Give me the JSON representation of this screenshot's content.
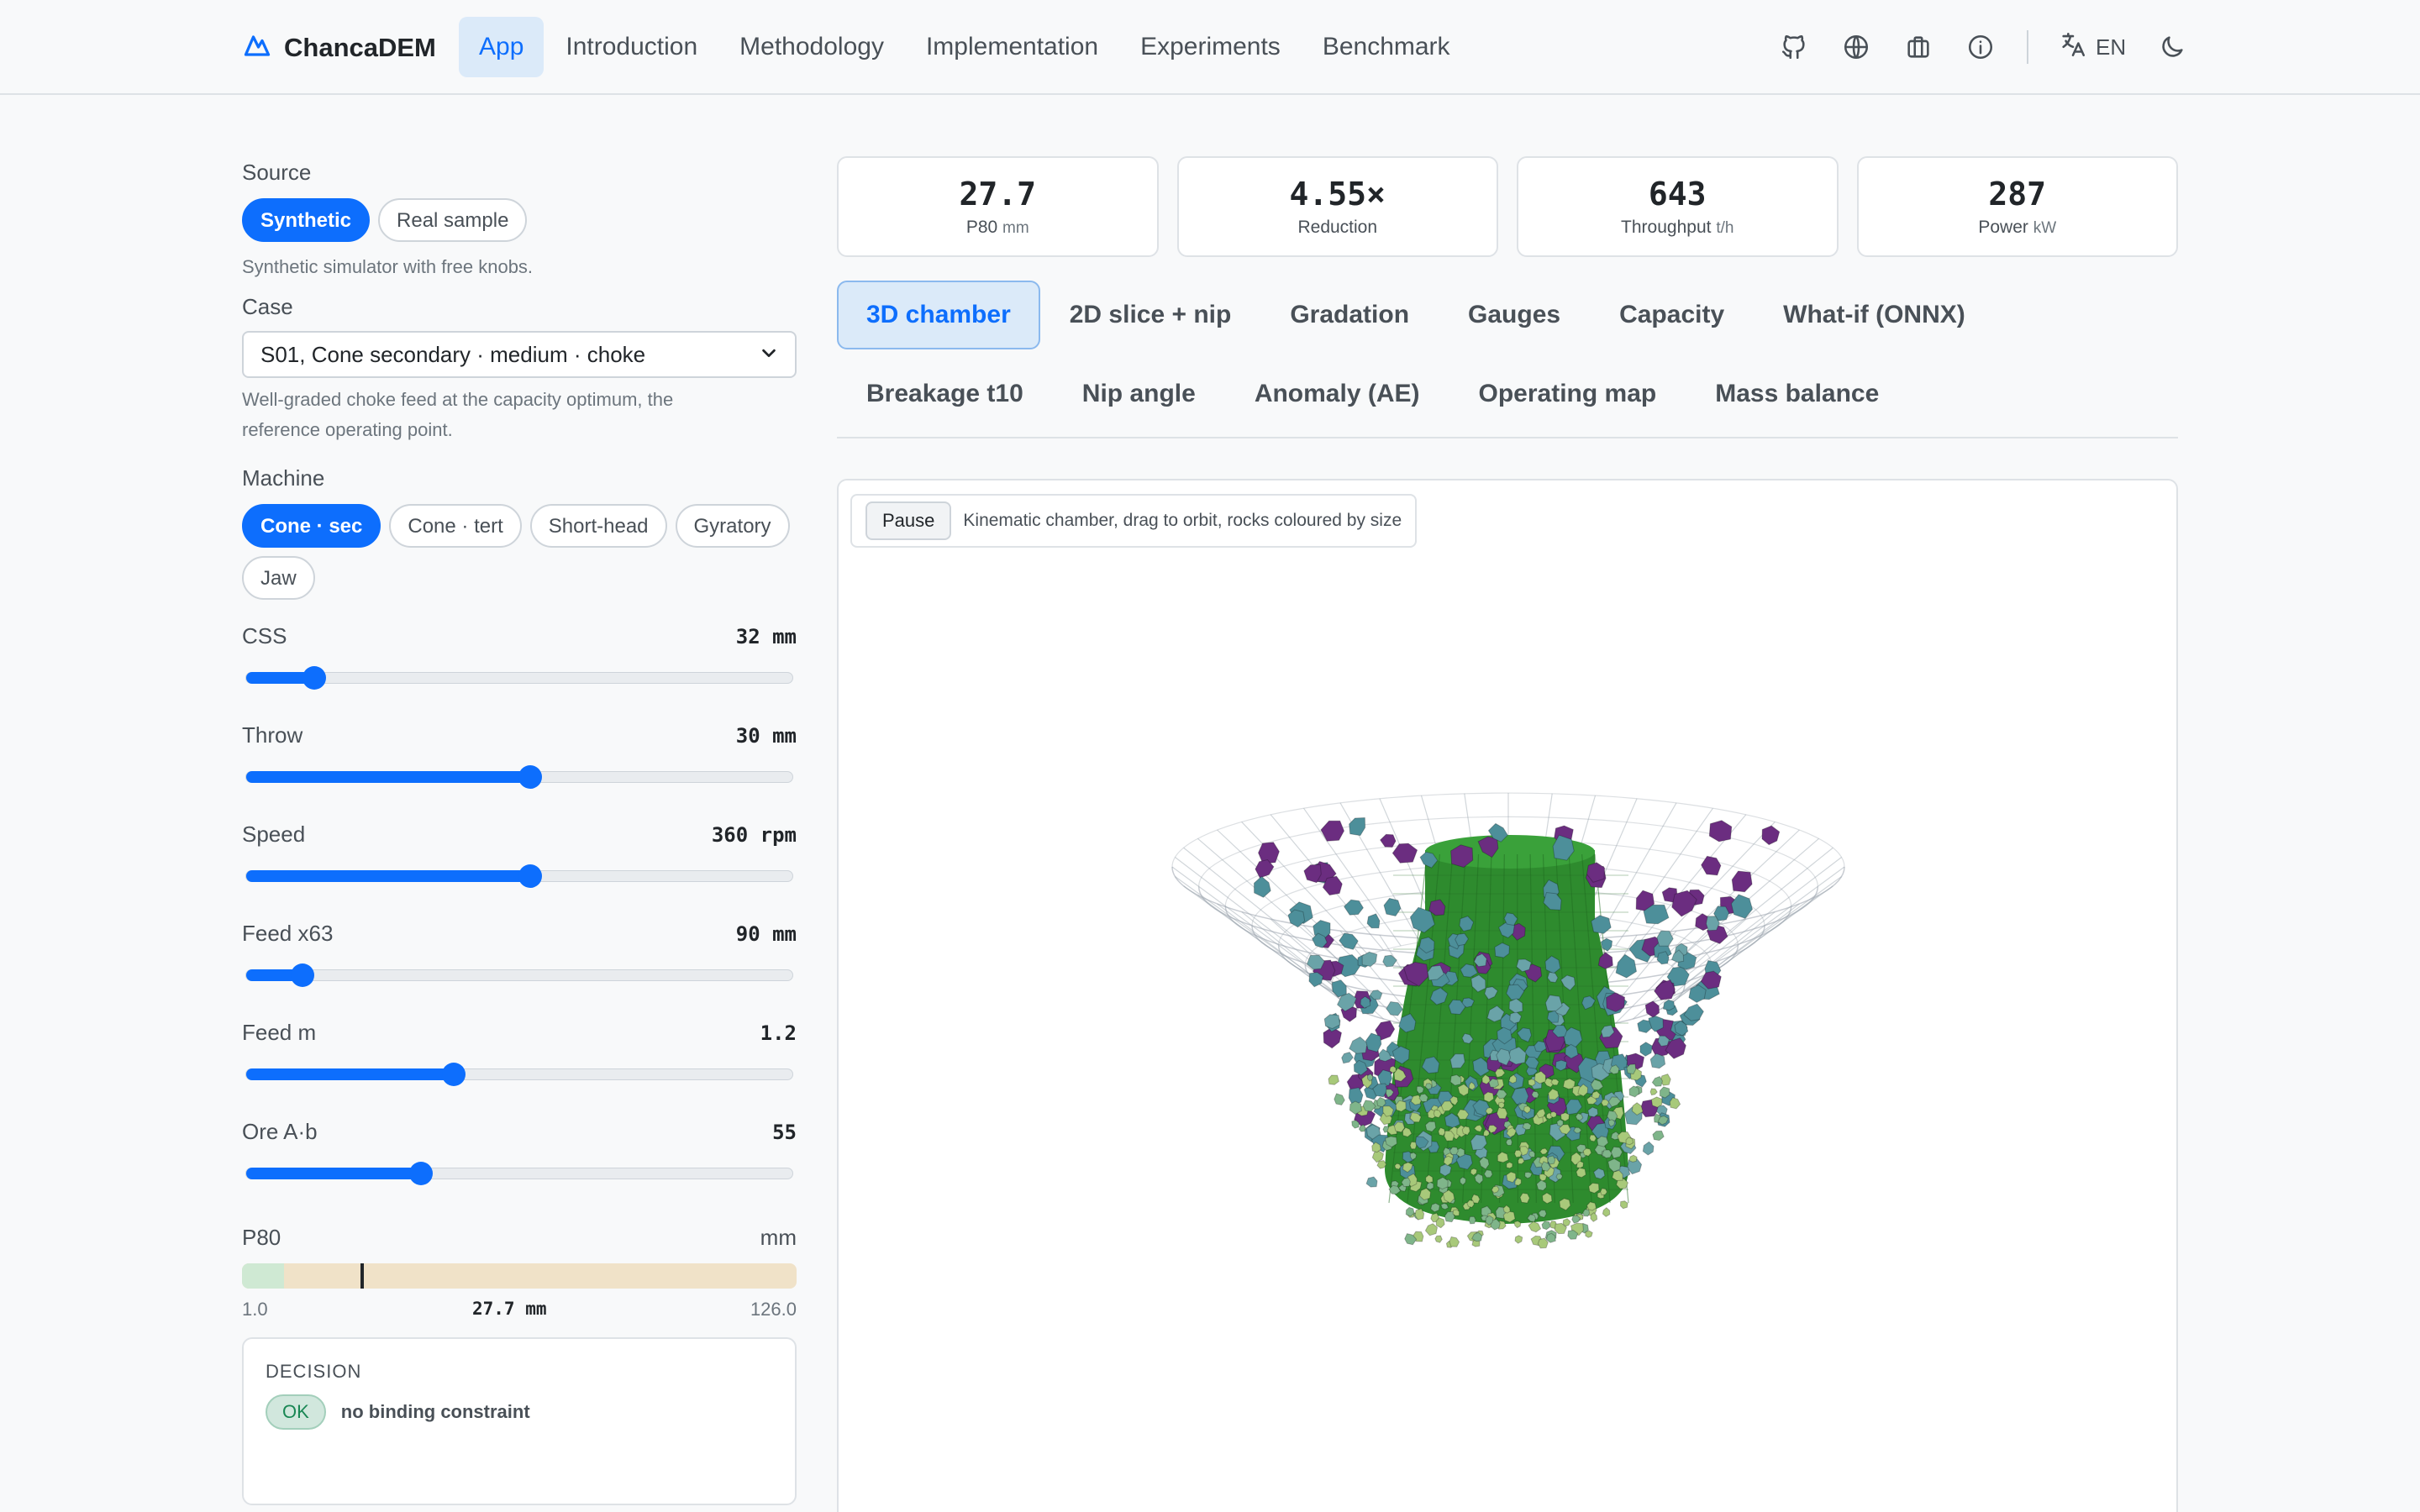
{
  "nav": {
    "brand": "ChancaDEM",
    "links": [
      "App",
      "Introduction",
      "Methodology",
      "Implementation",
      "Experiments",
      "Benchmark"
    ],
    "active_index": 0,
    "icons": [
      "github-icon",
      "globe-icon",
      "briefcase-icon",
      "info-icon"
    ],
    "lang": "EN"
  },
  "sidebar": {
    "source_label": "Source",
    "source_options": [
      "Synthetic",
      "Real sample"
    ],
    "source_hint": "Synthetic simulator with free knobs.",
    "case_label": "Case",
    "case_value": "S01, Cone secondary · medium · choke",
    "case_hint_1": "Well-graded choke feed at the capacity optimum, the",
    "case_hint_2": "reference operating point.",
    "machine_label": "Machine",
    "machine_options": [
      "Cone · sec",
      "Cone · tert",
      "Short-head",
      "Gyratory",
      "Jaw"
    ],
    "sliders": [
      {
        "label": "CSS",
        "value": "32 mm",
        "fraction": 0.125
      },
      {
        "label": "Throw",
        "value": "30 mm",
        "fraction": 0.52
      },
      {
        "label": "Speed",
        "value": "360 rpm",
        "fraction": 0.52
      },
      {
        "label": "Feed x63",
        "value": "90 mm",
        "fraction": 0.105
      },
      {
        "label": "Feed m",
        "value": "1.2",
        "fraction": 0.38
      },
      {
        "label": "Ore A·b",
        "value": "55",
        "fraction": 0.32
      }
    ],
    "p80": {
      "label": "P80",
      "unit": "mm",
      "min": "1.0",
      "max": "126.0",
      "value_text": "27.7 mm",
      "value": 27.7,
      "range_min": 1.0,
      "range_max": 126.0,
      "green_end": 10.5
    },
    "decision": {
      "title": "DECISION",
      "badge": "OK",
      "text": "no binding constraint"
    }
  },
  "metrics": [
    {
      "value": "27.7",
      "label": "P80",
      "unit": "mm"
    },
    {
      "value": "4.55×",
      "label": "Reduction",
      "unit": ""
    },
    {
      "value": "643",
      "label": "Throughput",
      "unit": "t/h"
    },
    {
      "value": "287",
      "label": "Power",
      "unit": "kW"
    }
  ],
  "tabs": [
    "3D chamber",
    "2D slice + nip",
    "Gradation",
    "Gauges",
    "Capacity",
    "What-if (ONNX)",
    "Breakage t10",
    "Nip angle",
    "Anomaly (AE)",
    "Operating map",
    "Mass balance"
  ],
  "active_tab": 0,
  "viewer": {
    "pause_label": "Pause",
    "caption": "Kinematic chamber, drag to orbit, rocks coloured by size"
  },
  "colors": {
    "accent": "#0d6efd",
    "mantle": "#2e8b2e",
    "rock_large": "#6b2d80",
    "rock_mid": "#4d8f9a",
    "rock_small": "#a8c97a"
  }
}
